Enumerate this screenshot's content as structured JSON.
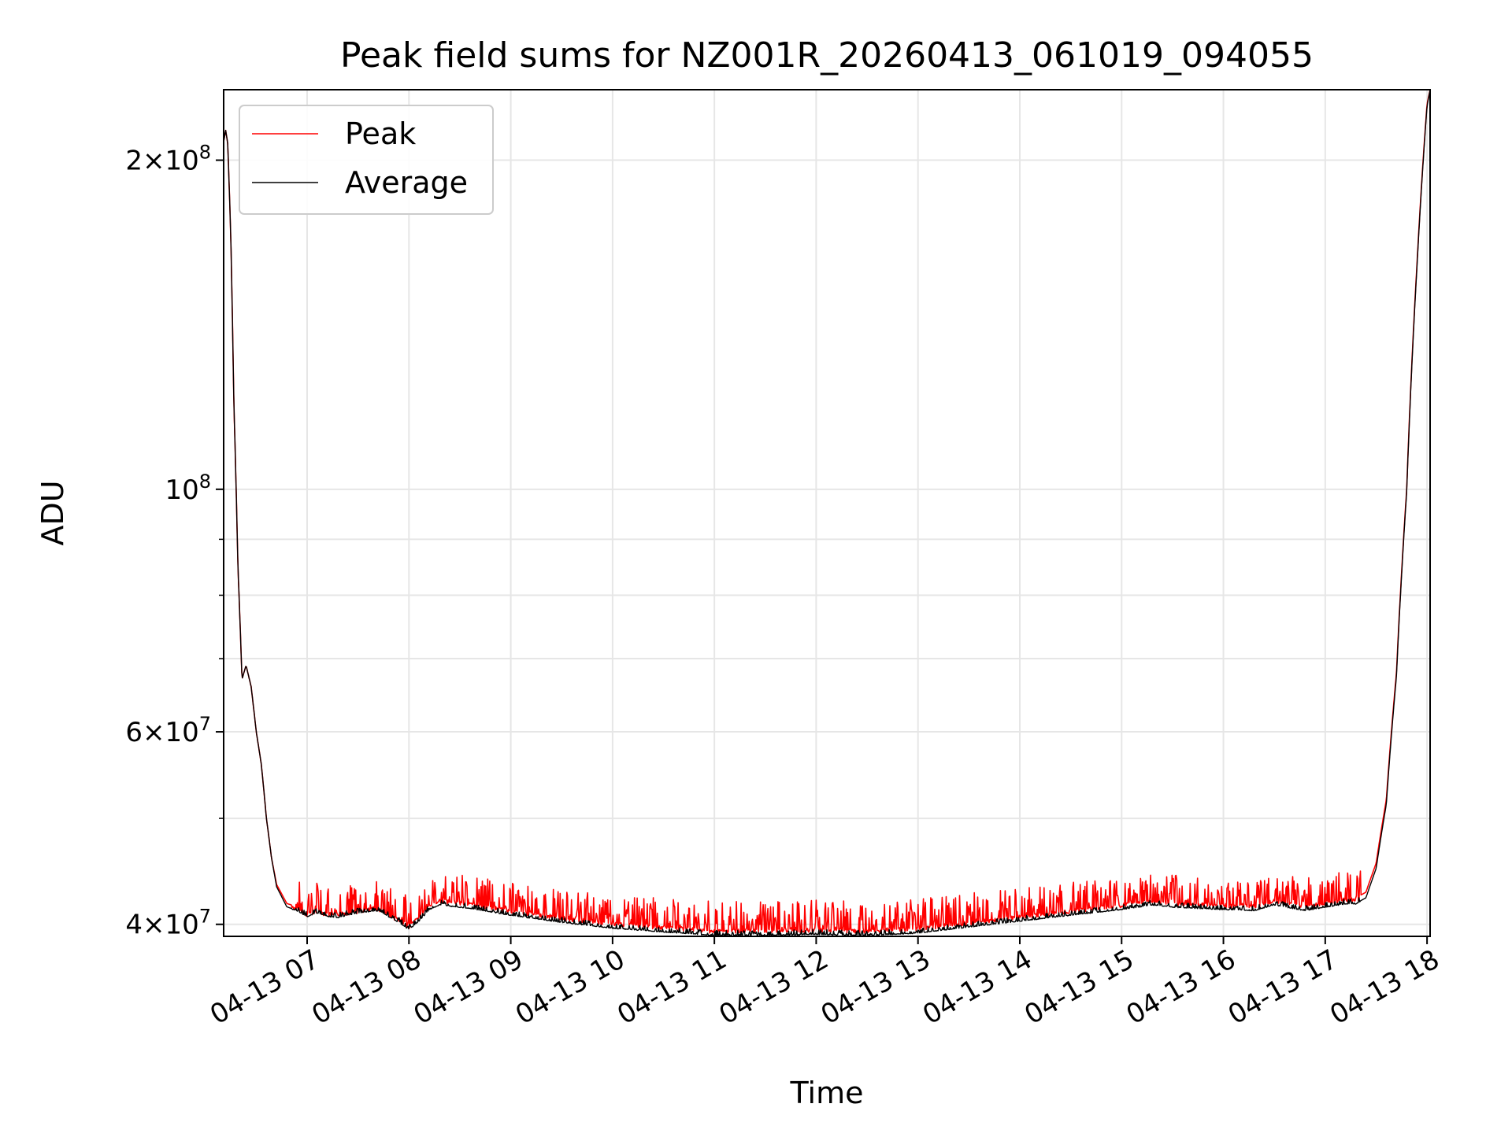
{
  "chart_data": {
    "type": "line",
    "title": "Peak field sums for NZ001R_20260413_061019_094055",
    "xlabel": "Time",
    "ylabel": "ADU",
    "yscale": "log",
    "ylim": [
      39000000,
      232000000
    ],
    "xlim": [
      6.18,
      18.03
    ],
    "grid": true,
    "legend_position": "upper-left",
    "x_ticks": [
      {
        "value": 7,
        "label": "04-13 07"
      },
      {
        "value": 8,
        "label": "04-13 08"
      },
      {
        "value": 9,
        "label": "04-13 09"
      },
      {
        "value": 10,
        "label": "04-13 10"
      },
      {
        "value": 11,
        "label": "04-13 11"
      },
      {
        "value": 12,
        "label": "04-13 12"
      },
      {
        "value": 13,
        "label": "04-13 13"
      },
      {
        "value": 14,
        "label": "04-13 14"
      },
      {
        "value": 15,
        "label": "04-13 15"
      },
      {
        "value": 16,
        "label": "04-13 16"
      },
      {
        "value": 17,
        "label": "04-13 17"
      },
      {
        "value": 18,
        "label": "04-13 18"
      }
    ],
    "y_ticks": [
      {
        "value": 40000000,
        "mantissa": "4",
        "exponent": "7"
      },
      {
        "value": 60000000,
        "mantissa": "6",
        "exponent": "7"
      },
      {
        "value": 100000000,
        "mantissa": "",
        "exponent": "8"
      },
      {
        "value": 200000000,
        "mantissa": "2",
        "exponent": "8"
      }
    ],
    "y_minor_ticks": [
      50000000,
      70000000,
      80000000,
      90000000
    ],
    "series": [
      {
        "name": "Peak",
        "color": "#ff0000",
        "noise_above": 2400000,
        "x": [
          6.18,
          6.2,
          6.22,
          6.25,
          6.28,
          6.32,
          6.36,
          6.4,
          6.45,
          6.5,
          6.55,
          6.6,
          6.65,
          6.7,
          6.8,
          6.9,
          7.0,
          7.1,
          7.2,
          7.3,
          7.5,
          7.7,
          7.9,
          8.0,
          8.1,
          8.2,
          8.3,
          8.4,
          8.6,
          9.0,
          9.5,
          10.0,
          10.5,
          11.0,
          11.5,
          12.0,
          12.5,
          13.0,
          13.5,
          14.0,
          14.5,
          15.0,
          15.3,
          15.5,
          16.0,
          16.3,
          16.5,
          16.8,
          17.0,
          17.2,
          17.3,
          17.4,
          17.5,
          17.6,
          17.7,
          17.8,
          17.9,
          18.0,
          18.03
        ],
        "y": [
          208000000,
          213000000,
          207000000,
          170000000,
          120000000,
          85000000,
          67000000,
          69000000,
          66000000,
          60000000,
          56000000,
          50000000,
          46000000,
          43500000,
          41800000,
          41500000,
          41000000,
          41300000,
          41000000,
          41000000,
          41300000,
          41500000,
          40500000,
          40000000,
          40800000,
          41800000,
          42200000,
          42100000,
          41900000,
          41300000,
          40700000,
          40200000,
          39900000,
          39600000,
          39600000,
          39700000,
          39600000,
          39800000,
          40300000,
          40800000,
          41300000,
          41800000,
          42200000,
          42000000,
          41800000,
          41700000,
          42200000,
          41700000,
          42000000,
          42300000,
          42300000,
          42800000,
          45500000,
          52000000,
          68000000,
          100000000,
          160000000,
          225000000,
          232000000
        ]
      },
      {
        "name": "Average",
        "color": "#000000",
        "noise_above": 400000,
        "x": [
          6.18,
          6.2,
          6.22,
          6.25,
          6.28,
          6.32,
          6.36,
          6.4,
          6.45,
          6.5,
          6.55,
          6.6,
          6.65,
          6.7,
          6.8,
          6.9,
          7.0,
          7.1,
          7.2,
          7.3,
          7.5,
          7.7,
          7.9,
          8.0,
          8.1,
          8.2,
          8.3,
          8.4,
          8.6,
          9.0,
          9.5,
          10.0,
          10.5,
          11.0,
          11.5,
          12.0,
          12.5,
          13.0,
          13.5,
          14.0,
          14.5,
          15.0,
          15.3,
          15.5,
          16.0,
          16.3,
          16.5,
          16.8,
          17.0,
          17.2,
          17.3,
          17.4,
          17.5,
          17.6,
          17.7,
          17.8,
          17.9,
          18.0,
          18.03
        ],
        "y": [
          208000000,
          213000000,
          207000000,
          170000000,
          120000000,
          85000000,
          67000000,
          69000000,
          66000000,
          60000000,
          56000000,
          50000000,
          46000000,
          43300000,
          41500000,
          41200000,
          40700000,
          41000000,
          40700000,
          40600000,
          41000000,
          41200000,
          40200000,
          39600000,
          40300000,
          41300000,
          41700000,
          41600000,
          41400000,
          40800000,
          40200000,
          39700000,
          39400000,
          39100000,
          39100000,
          39200000,
          39100000,
          39300000,
          39800000,
          40300000,
          40800000,
          41300000,
          41700000,
          41500000,
          41300000,
          41200000,
          41700000,
          41200000,
          41500000,
          41800000,
          41800000,
          42300000,
          45000000,
          51500000,
          67500000,
          99500000,
          159000000,
          224000000,
          232000000
        ]
      }
    ]
  }
}
